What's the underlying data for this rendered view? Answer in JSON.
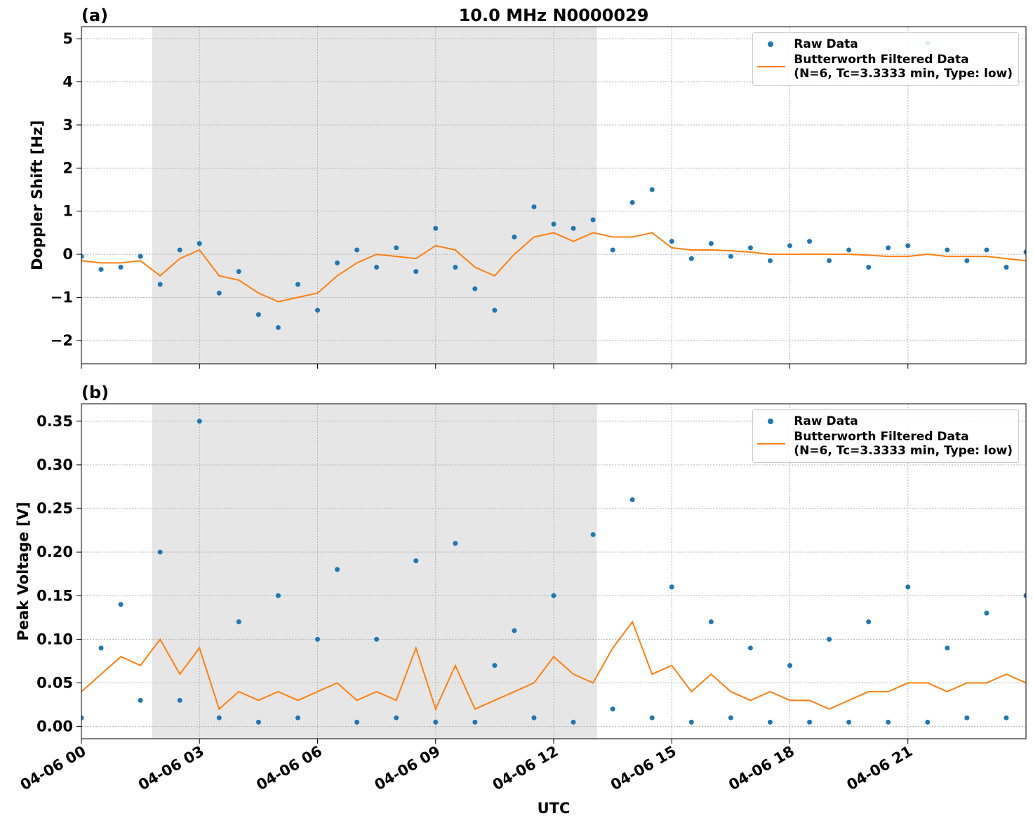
{
  "chart_data": [
    {
      "type": "scatter",
      "panel_label": "(a)",
      "title": "10.0 MHz N0000029",
      "ylabel": "Doppler Shift [Hz]",
      "x": [
        0,
        0.5,
        1,
        1.5,
        2,
        2.5,
        3,
        3.5,
        4,
        4.5,
        5,
        5.5,
        6,
        6.5,
        7,
        7.5,
        8,
        8.5,
        9,
        9.5,
        10,
        10.5,
        11,
        11.5,
        12,
        12.5,
        13,
        13.5,
        14,
        14.5,
        15,
        15.5,
        16,
        16.5,
        17,
        17.5,
        18,
        18.5,
        19,
        19.5,
        20,
        20.5,
        21,
        21.5,
        22,
        22.5,
        23,
        23.5,
        24
      ],
      "series": [
        {
          "name": "Raw Data",
          "type": "scatter",
          "color": "#1f77b4",
          "values": [
            -0.05,
            -0.35,
            -0.3,
            -0.05,
            -0.7,
            0.1,
            0.25,
            -0.9,
            -0.4,
            -1.4,
            -1.7,
            -0.7,
            -1.3,
            -0.2,
            0.1,
            -0.3,
            0.15,
            -0.4,
            0.6,
            -0.3,
            -0.8,
            -1.3,
            0.4,
            1.1,
            0.7,
            0.6,
            0.8,
            0.1,
            1.2,
            1.5,
            0.3,
            -0.1,
            0.25,
            -0.05,
            0.15,
            -0.15,
            0.2,
            0.3,
            -0.15,
            0.1,
            -0.3,
            0.15,
            0.2,
            4.9,
            0.1,
            -0.15,
            0.1,
            -0.3,
            0.05
          ]
        },
        {
          "name": "Butterworth Filtered Data\n(N=6, Tc=3.3333 min, Type: low)",
          "type": "line",
          "color": "#ff7f0e",
          "values": [
            -0.15,
            -0.2,
            -0.2,
            -0.15,
            -0.5,
            -0.1,
            0.1,
            -0.5,
            -0.6,
            -0.9,
            -1.1,
            -1.0,
            -0.9,
            -0.5,
            -0.2,
            0.0,
            -0.05,
            -0.1,
            0.2,
            0.1,
            -0.3,
            -0.5,
            0.0,
            0.4,
            0.5,
            0.3,
            0.5,
            0.4,
            0.4,
            0.5,
            0.15,
            0.1,
            0.1,
            0.08,
            0.05,
            0.0,
            0.0,
            0.0,
            0.0,
            0.0,
            -0.02,
            -0.05,
            -0.05,
            0.0,
            -0.05,
            -0.05,
            -0.05,
            -0.1,
            -0.15
          ]
        }
      ],
      "xlim": [
        0,
        24
      ],
      "xticks": [
        0,
        3,
        6,
        9,
        12,
        15,
        18,
        21
      ],
      "ylim": [
        -2.54,
        5.28
      ],
      "yticks": [
        {
          "value": -2,
          "label": "−2"
        },
        {
          "value": -1,
          "label": "−1"
        },
        0,
        1,
        2,
        3,
        4,
        5
      ],
      "shaded_span": [
        1.8,
        13.1
      ],
      "grid": true,
      "legend": "upper right"
    },
    {
      "type": "scatter",
      "panel_label": "(b)",
      "ylabel": "Peak Voltage [V]",
      "xlabel": "UTC",
      "x": [
        0,
        0.5,
        1,
        1.5,
        2,
        2.5,
        3,
        3.5,
        4,
        4.5,
        5,
        5.5,
        6,
        6.5,
        7,
        7.5,
        8,
        8.5,
        9,
        9.5,
        10,
        10.5,
        11,
        11.5,
        12,
        12.5,
        13,
        13.5,
        14,
        14.5,
        15,
        15.5,
        16,
        16.5,
        17,
        17.5,
        18,
        18.5,
        19,
        19.5,
        20,
        20.5,
        21,
        21.5,
        22,
        22.5,
        23,
        23.5,
        24
      ],
      "series": [
        {
          "name": "Raw Data",
          "type": "scatter",
          "color": "#1f77b4",
          "values": [
            0.01,
            0.09,
            0.14,
            0.03,
            0.2,
            0.03,
            0.35,
            0.01,
            0.12,
            0.005,
            0.15,
            0.01,
            0.1,
            0.18,
            0.005,
            0.1,
            0.01,
            0.19,
            0.005,
            0.21,
            0.005,
            0.07,
            0.11,
            0.01,
            0.15,
            0.005,
            0.22,
            0.02,
            0.26,
            0.01,
            0.16,
            0.005,
            0.12,
            0.01,
            0.09,
            0.005,
            0.07,
            0.005,
            0.1,
            0.005,
            0.12,
            0.005,
            0.16,
            0.005,
            0.09,
            0.01,
            0.13,
            0.01,
            0.15
          ]
        },
        {
          "name": "Butterworth Filtered Data\n(N=6, Tc=3.3333 min, Type: low)",
          "type": "line",
          "color": "#ff7f0e",
          "values": [
            0.04,
            0.06,
            0.08,
            0.07,
            0.1,
            0.06,
            0.09,
            0.02,
            0.04,
            0.03,
            0.04,
            0.03,
            0.04,
            0.05,
            0.03,
            0.04,
            0.03,
            0.09,
            0.02,
            0.07,
            0.02,
            0.03,
            0.04,
            0.05,
            0.08,
            0.06,
            0.05,
            0.09,
            0.12,
            0.06,
            0.07,
            0.04,
            0.06,
            0.04,
            0.03,
            0.04,
            0.03,
            0.03,
            0.02,
            0.03,
            0.04,
            0.04,
            0.05,
            0.05,
            0.04,
            0.05,
            0.05,
            0.06,
            0.05
          ]
        }
      ],
      "xlim": [
        0,
        24
      ],
      "xticks": [
        {
          "value": 0,
          "label": "04-06 00"
        },
        {
          "value": 3,
          "label": "04-06 03"
        },
        {
          "value": 6,
          "label": "04-06 06"
        },
        {
          "value": 9,
          "label": "04-06 09"
        },
        {
          "value": 12,
          "label": "04-06 12"
        },
        {
          "value": 15,
          "label": "04-06 15"
        },
        {
          "value": 18,
          "label": "04-06 18"
        },
        {
          "value": 21,
          "label": "04-06 21"
        }
      ],
      "ylim": [
        -0.014,
        0.37
      ],
      "yticks": [
        {
          "value": 0,
          "label": "0.00"
        },
        {
          "value": 0.05,
          "label": "0.05"
        },
        {
          "value": 0.1,
          "label": "0.10"
        },
        {
          "value": 0.15,
          "label": "0.15"
        },
        {
          "value": 0.2,
          "label": "0.20"
        },
        {
          "value": 0.25,
          "label": "0.25"
        },
        {
          "value": 0.3,
          "label": "0.30"
        },
        {
          "value": 0.35,
          "label": "0.35"
        }
      ],
      "shaded_span": [
        1.8,
        13.1
      ],
      "grid": true,
      "legend": "upper right"
    }
  ]
}
